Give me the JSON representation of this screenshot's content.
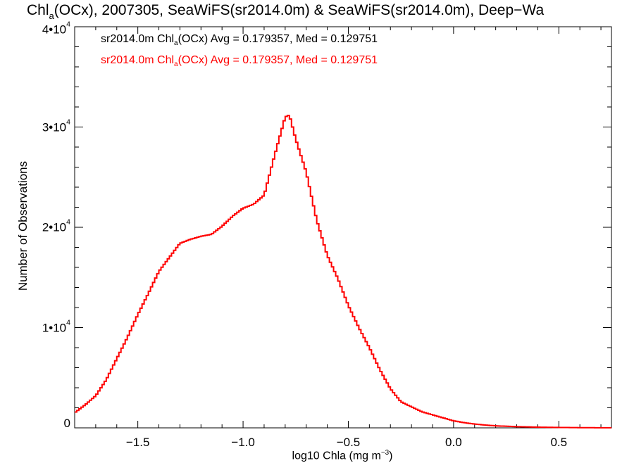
{
  "chart_data": {
    "type": "line",
    "title": {
      "pre": "Chl",
      "sub": "a",
      "post": "(OCx), 2007305, SeaWiFS(sr2014.0m) & SeaWiFS(sr2014.0m), Deep−Wa"
    },
    "xlabel": {
      "pre": "log10 Chla (mg m",
      "sup": "−3",
      "post": ")"
    },
    "ylabel": "Number of Observations",
    "xlim": [
      -1.8,
      0.75
    ],
    "ylim": [
      0,
      40000
    ],
    "xticks": [
      {
        "value": -1.5,
        "label": "−1.5"
      },
      {
        "value": -1.0,
        "label": "−1.0"
      },
      {
        "value": -0.5,
        "label": "−0.5"
      },
      {
        "value": 0.0,
        "label": "0.0"
      },
      {
        "value": 0.5,
        "label": "0.5"
      }
    ],
    "yticks": [
      {
        "value": 0,
        "base": "0",
        "exp": ""
      },
      {
        "value": 10000,
        "base": "1•10",
        "exp": "4"
      },
      {
        "value": 20000,
        "base": "2•10",
        "exp": "4"
      },
      {
        "value": 30000,
        "base": "3•10",
        "exp": "4"
      },
      {
        "value": 40000,
        "base": "4•10",
        "exp": "4"
      }
    ],
    "legend": [
      {
        "pre": "sr2014.0m Chl",
        "sub": "a",
        "post": "(OCx) Avg = 0.179357, Med = 0.129751",
        "color": "#000000"
      },
      {
        "pre": "sr2014.0m Chl",
        "sub": "a",
        "post": "(OCx) Avg = 0.179357, Med = 0.129751",
        "color": "#ff0000"
      }
    ],
    "series": [
      {
        "color": "#ff0000",
        "x": [
          -1.8,
          -1.75,
          -1.7,
          -1.65,
          -1.6,
          -1.55,
          -1.5,
          -1.45,
          -1.4,
          -1.35,
          -1.3,
          -1.25,
          -1.2,
          -1.15,
          -1.1,
          -1.05,
          -1.0,
          -0.95,
          -0.9,
          -0.85,
          -0.8,
          -0.78,
          -0.75,
          -0.7,
          -0.65,
          -0.6,
          -0.55,
          -0.5,
          -0.45,
          -0.4,
          -0.35,
          -0.3,
          -0.25,
          -0.2,
          -0.15,
          -0.1,
          -0.05,
          0.0,
          0.05,
          0.1,
          0.15,
          0.2,
          0.3,
          0.4,
          0.5,
          0.6,
          0.7,
          0.75
        ],
        "y": [
          1500,
          2300,
          3200,
          4800,
          6900,
          9000,
          11300,
          13400,
          15600,
          17000,
          18400,
          18800,
          19100,
          19300,
          20100,
          21100,
          21900,
          22300,
          23200,
          27200,
          31000,
          31200,
          28800,
          25500,
          20700,
          17200,
          14900,
          12200,
          10000,
          8000,
          5800,
          3900,
          2600,
          2100,
          1600,
          1300,
          1000,
          700,
          520,
          380,
          280,
          200,
          120,
          70,
          40,
          20,
          10,
          5
        ]
      }
    ]
  }
}
